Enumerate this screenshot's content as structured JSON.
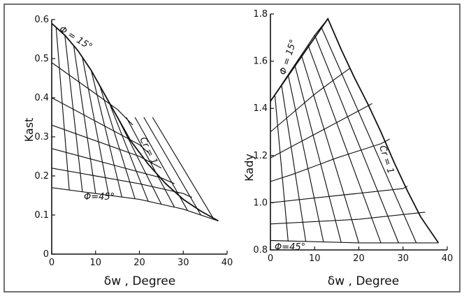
{
  "chart_data": [
    {
      "type": "line",
      "ylabel": "Kast",
      "xlabel": "δw , Degree",
      "xlim": [
        0,
        40
      ],
      "ylim": [
        0,
        0.6
      ],
      "xticks": [
        0,
        10,
        20,
        30,
        40
      ],
      "xtick_labels": [
        "0",
        "10",
        "20",
        "30",
        "40"
      ],
      "yticks": [
        0,
        0.1,
        0.2,
        0.3,
        0.4,
        0.5,
        0.6
      ],
      "ytick_labels": [
        "0",
        "0.1",
        "0.2",
        "0.3",
        "0.4",
        "0.5",
        "0.6"
      ],
      "annotations": [
        "Φ = 15°",
        "Cr = 1",
        "Φ=45°"
      ],
      "envelope": {
        "x": [
          0,
          3,
          6,
          9,
          12,
          15,
          18,
          22,
          26,
          30,
          34,
          38
        ],
        "y": [
          0.59,
          0.56,
          0.52,
          0.47,
          0.41,
          0.35,
          0.29,
          0.23,
          0.18,
          0.14,
          0.11,
          0.085
        ]
      },
      "series": [
        {
          "x": [
            0,
            3,
            6,
            9,
            12,
            15
          ],
          "y": [
            0.59,
            0.56,
            0.52,
            0.47,
            0.41,
            0.35
          ]
        },
        {
          "x": [
            0,
            5,
            10,
            15,
            18.5
          ],
          "y": [
            0.49,
            0.45,
            0.41,
            0.37,
            0.33
          ]
        },
        {
          "x": [
            0,
            5,
            10,
            15,
            20,
            22
          ],
          "y": [
            0.4,
            0.37,
            0.34,
            0.31,
            0.28,
            0.26
          ]
        },
        {
          "x": [
            0,
            5,
            10,
            15,
            20,
            25
          ],
          "y": [
            0.33,
            0.31,
            0.29,
            0.27,
            0.25,
            0.22
          ]
        },
        {
          "x": [
            0,
            5,
            10,
            15,
            20,
            25,
            28
          ],
          "y": [
            0.27,
            0.255,
            0.24,
            0.225,
            0.21,
            0.195,
            0.18
          ]
        },
        {
          "x": [
            0,
            10,
            20,
            30,
            32
          ],
          "y": [
            0.22,
            0.2,
            0.18,
            0.155,
            0.145
          ]
        },
        {
          "x": [
            0,
            10,
            20,
            30,
            38
          ],
          "y": [
            0.17,
            0.155,
            0.14,
            0.115,
            0.085
          ]
        }
      ],
      "crosslines": {
        "top_x": [
          1,
          3,
          5,
          7,
          9,
          11,
          13,
          15,
          17,
          19,
          21,
          23
        ],
        "bottom_x": [
          4,
          7,
          10,
          13,
          16,
          19,
          22,
          25,
          28,
          31,
          34,
          37
        ]
      }
    },
    {
      "type": "line",
      "ylabel": "Kady",
      "xlabel": "δw , Degree",
      "xlim": [
        0,
        40
      ],
      "ylim": [
        0.8,
        1.8
      ],
      "xticks": [
        0,
        10,
        20,
        30,
        40
      ],
      "xtick_labels": [
        "0",
        "10",
        "20",
        "30",
        "40"
      ],
      "yticks": [
        0.8,
        1.0,
        1.2,
        1.4,
        1.6,
        1.8
      ],
      "ytick_labels": [
        "0.8",
        "1.0",
        "1.2",
        "1.4",
        "1.6",
        "1.8"
      ],
      "annotations": [
        "Φ = 15°",
        "Cr = 1",
        "Φ=45°"
      ],
      "envelope": {
        "x": [
          0,
          13,
          16,
          19,
          22,
          25,
          28,
          31,
          34,
          38
        ],
        "y": [
          1.43,
          1.78,
          1.65,
          1.53,
          1.42,
          1.3,
          1.17,
          1.05,
          0.94,
          0.83
        ]
      },
      "series": [
        {
          "x": [
            0,
            5,
            10,
            13
          ],
          "y": [
            1.43,
            1.57,
            1.71,
            1.78
          ]
        },
        {
          "x": [
            0,
            5,
            10,
            15,
            18
          ],
          "y": [
            1.3,
            1.38,
            1.46,
            1.53,
            1.57
          ]
        },
        {
          "x": [
            0,
            5,
            10,
            15,
            20,
            23
          ],
          "y": [
            1.19,
            1.24,
            1.29,
            1.34,
            1.39,
            1.42
          ]
        },
        {
          "x": [
            0,
            5,
            10,
            15,
            20,
            25,
            27
          ],
          "y": [
            1.09,
            1.12,
            1.155,
            1.19,
            1.22,
            1.25,
            1.27
          ]
        },
        {
          "x": [
            0,
            10,
            20,
            30,
            31
          ],
          "y": [
            1.0,
            1.02,
            1.04,
            1.06,
            1.07
          ]
        },
        {
          "x": [
            0,
            10,
            20,
            30,
            35
          ],
          "y": [
            0.91,
            0.92,
            0.93,
            0.95,
            0.96
          ]
        },
        {
          "x": [
            0,
            10,
            20,
            30,
            38
          ],
          "y": [
            0.84,
            0.835,
            0.83,
            0.83,
            0.83
          ]
        }
      ],
      "crosslines": {
        "top_x": [
          1,
          2.5,
          4,
          5.5,
          7,
          8.5,
          10,
          11.5
        ],
        "bottom_x": [
          4,
          8,
          12,
          16,
          20,
          25,
          29,
          33
        ]
      }
    }
  ]
}
